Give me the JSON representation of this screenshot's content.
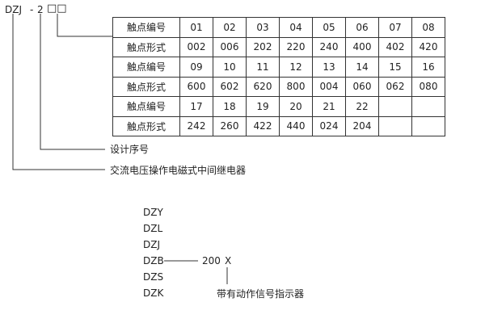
{
  "model_code": {
    "prefix": "DZJ",
    "dash": "-",
    "digit": "2",
    "boxes": "□□"
  },
  "table": {
    "rows": [
      {
        "label": "触点编号",
        "cells": [
          "01",
          "02",
          "03",
          "04",
          "05",
          "06",
          "07",
          "08"
        ]
      },
      {
        "label": "触点形式",
        "cells": [
          "002",
          "006",
          "202",
          "220",
          "240",
          "400",
          "402",
          "420"
        ]
      },
      {
        "label": "触点编号",
        "cells": [
          "09",
          "10",
          "11",
          "12",
          "13",
          "14",
          "15",
          "16"
        ]
      },
      {
        "label": "触点形式",
        "cells": [
          "600",
          "602",
          "620",
          "800",
          "004",
          "060",
          "062",
          "080"
        ]
      },
      {
        "label": "触点编号",
        "cells": [
          "17",
          "18",
          "19",
          "20",
          "21",
          "22",
          "",
          ""
        ]
      },
      {
        "label": "触点形式",
        "cells": [
          "242",
          "260",
          "422",
          "440",
          "024",
          "204",
          "",
          ""
        ]
      }
    ]
  },
  "annotations": {
    "design_number": "设计序号",
    "relay_type": "交流电压操作电磁式中间继电器"
  },
  "series_list": [
    "DZY",
    "DZL",
    "DZJ",
    "DZB",
    "DZS",
    "DZK"
  ],
  "dzb_code": {
    "number": "200",
    "suffix": "X",
    "suffix_note": "带有动作信号指示器"
  }
}
